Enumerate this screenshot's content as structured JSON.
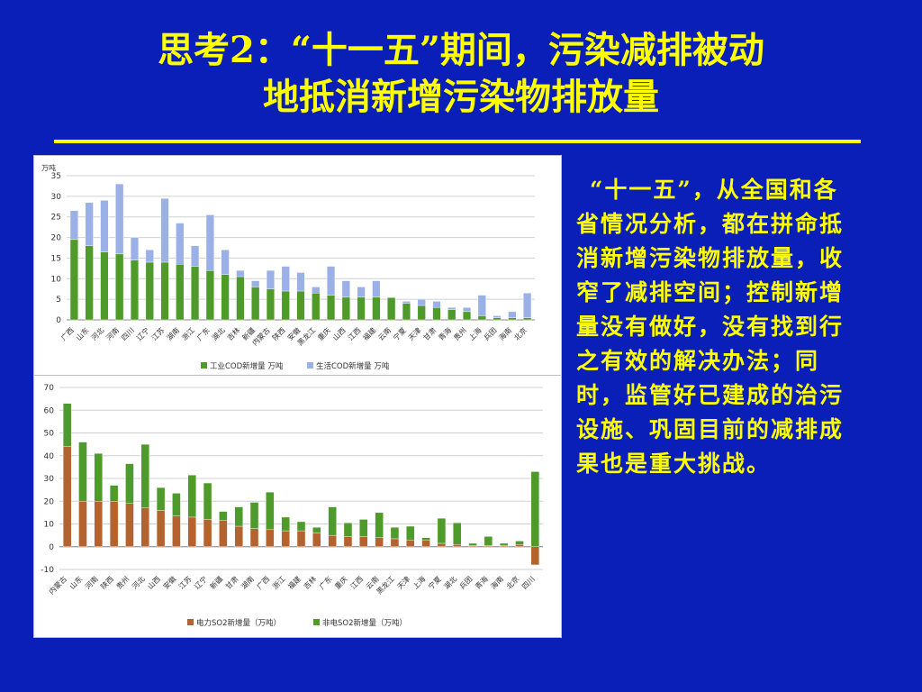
{
  "slide": {
    "title_line1": "思考2：“十一五”期间，污染减排被动",
    "title_line2": "地抵消新增污染物排放量",
    "side_text": "“十一五”，从全国和各省情况分析，都在拼命抵消新增污染物排放量，收窄了减排空间；控制新增量没有做好，没有找到行之有效的解决办法；同时，监管好已建成的治污设施、巩固目前的减排成果也是重大挑战。",
    "colors": {
      "background": "#0a1fb8",
      "title": "#ffff00",
      "text": "#ffff00"
    }
  },
  "chart_data": [
    {
      "type": "bar",
      "stacked": true,
      "unit_label": "万吨",
      "ylim": [
        0,
        35
      ],
      "yticks": [
        0,
        5,
        10,
        15,
        20,
        25,
        30,
        35
      ],
      "grid": true,
      "legend_position": "bottom",
      "categories": [
        "广西",
        "山东",
        "河北",
        "河南",
        "四川",
        "辽宁",
        "江苏",
        "湖南",
        "浙江",
        "广东",
        "湖北",
        "吉林",
        "新疆",
        "内蒙古",
        "陕西",
        "安徽",
        "黑龙江",
        "重庆",
        "山西",
        "江西",
        "福建",
        "云南",
        "宁夏",
        "天津",
        "甘肃",
        "青海",
        "贵州",
        "上海",
        "兵团",
        "海南",
        "北京"
      ],
      "series": [
        {
          "name": "工业COD新增量 万吨",
          "color": "#4e9a2a",
          "values": [
            19.5,
            18,
            16.5,
            16,
            14.5,
            14,
            14,
            13.5,
            13,
            12,
            11,
            10.5,
            8,
            7.5,
            7,
            7,
            6.5,
            6,
            5.5,
            5.5,
            5.5,
            5.5,
            4,
            3.5,
            3,
            2.5,
            2,
            1,
            0.5,
            0.5,
            0.5
          ]
        },
        {
          "name": "生活COD新增量 万吨",
          "color": "#9bb0e6",
          "values": [
            7,
            10.5,
            12.5,
            17,
            5.5,
            3,
            15.5,
            10,
            5,
            13.5,
            6,
            1.5,
            1.5,
            4.5,
            6,
            4.5,
            1.5,
            7,
            4,
            2.5,
            4,
            0,
            0.5,
            1.5,
            1.5,
            0.5,
            1,
            5,
            0.5,
            1.5,
            6
          ]
        }
      ]
    },
    {
      "type": "bar",
      "stacked": true,
      "ylim": [
        -10,
        70
      ],
      "yticks": [
        -10,
        0,
        10,
        20,
        30,
        40,
        50,
        60,
        70
      ],
      "grid": true,
      "legend_position": "bottom",
      "categories": [
        "内蒙古",
        "山东",
        "河南",
        "陕西",
        "贵州",
        "河北",
        "山西",
        "安徽",
        "江苏",
        "辽宁",
        "新疆",
        "甘肃",
        "湖南",
        "广西",
        "浙江",
        "福建",
        "吉林",
        "广东",
        "重庆",
        "江西",
        "云南",
        "黑龙江",
        "天津",
        "上海",
        "宁夏",
        "湖北",
        "兵团",
        "青海",
        "海南",
        "北京",
        "四川"
      ],
      "series": [
        {
          "name": "电力SO2新增量（万吨）",
          "color": "#b4622e",
          "values": [
            44,
            20,
            20,
            20,
            19,
            17,
            16,
            13.5,
            13,
            12,
            11.5,
            9,
            8,
            7.5,
            7,
            7,
            6,
            5,
            4.5,
            4.5,
            4,
            3.5,
            3,
            3,
            1.5,
            1,
            0.5,
            0.5,
            0.5,
            1,
            -8
          ]
        },
        {
          "name": "非电SO2新增量（万吨）",
          "color": "#4e9a2a",
          "values": [
            19,
            26,
            21,
            7,
            17.5,
            28,
            10,
            10,
            18.5,
            16,
            4,
            8.5,
            11.5,
            16.5,
            6,
            4,
            2.5,
            12.5,
            6,
            7.5,
            11,
            5,
            6,
            1,
            11,
            9.5,
            1,
            4,
            1,
            1.5,
            33
          ]
        }
      ]
    }
  ]
}
